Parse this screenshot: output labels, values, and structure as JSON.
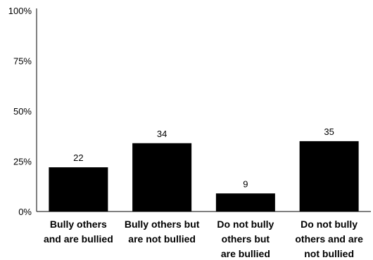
{
  "chart_data": {
    "type": "bar",
    "categories": [
      [
        "Bully others",
        "and are bullied"
      ],
      [
        "Bully others but",
        "are not bullied"
      ],
      [
        "Do not bully",
        "others but",
        "are bullied"
      ],
      [
        "Do not bully",
        "others and are",
        "not bullied"
      ]
    ],
    "values": [
      22,
      34,
      9,
      35
    ],
    "data_labels": [
      "22",
      "34",
      "9",
      "35"
    ],
    "y_ticks": [
      0,
      25,
      50,
      75,
      100
    ],
    "y_tick_labels": [
      "0%",
      "25%",
      "50%",
      "75%",
      "100%"
    ],
    "ylim": [
      0,
      100
    ],
    "grid": false,
    "bar_color": "#000000"
  }
}
